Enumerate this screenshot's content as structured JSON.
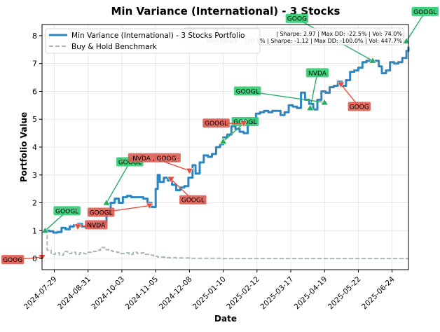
{
  "chart_data": {
    "type": "line",
    "title": "Min Variance (International) - 3 Stocks",
    "xlabel": "Date",
    "ylabel": "Portfolio Value",
    "x_tick_labels": [
      "2024-07-29",
      "2024-08-31",
      "2024-10-03",
      "2024-11-05",
      "2024-12-08",
      "2025-01-10",
      "2025-02-12",
      "2025-03-17",
      "2025-04-19",
      "2025-05-22",
      "2025-06-24"
    ],
    "x_tick_dates": [
      "2024-07-29",
      "2024-08-31",
      "2024-10-03",
      "2024-11-05",
      "2024-12-08",
      "2025-01-10",
      "2025-02-12",
      "2025-03-17",
      "2025-04-19",
      "2025-05-22",
      "2025-06-24"
    ],
    "xlim": [
      "2024-07-17",
      "2025-07-10"
    ],
    "ylim": [
      -0.4,
      8.4
    ],
    "y_ticks": [
      0,
      1,
      2,
      3,
      4,
      5,
      6,
      7,
      8
    ],
    "grid": true,
    "legend_placement": "upper-left",
    "series": [
      {
        "name": "Min Variance (International) - 3 Stocks Portfolio",
        "color": "#2e86c1",
        "points": [
          [
            "2024-07-20",
            1.0
          ],
          [
            "2024-07-24",
            0.98
          ],
          [
            "2024-07-28",
            0.93
          ],
          [
            "2024-08-01",
            0.95
          ],
          [
            "2024-08-05",
            1.1
          ],
          [
            "2024-08-09",
            1.05
          ],
          [
            "2024-08-13",
            1.15
          ],
          [
            "2024-08-17",
            1.2
          ],
          [
            "2024-08-21",
            1.25
          ],
          [
            "2024-08-25",
            1.15
          ],
          [
            "2024-08-29",
            1.2
          ],
          [
            "2024-09-02",
            1.15
          ],
          [
            "2024-09-06",
            1.1
          ],
          [
            "2024-09-10",
            1.2
          ],
          [
            "2024-09-14",
            1.3
          ],
          [
            "2024-09-18",
            1.6
          ],
          [
            "2024-09-22",
            2.0
          ],
          [
            "2024-09-26",
            2.15
          ],
          [
            "2024-09-30",
            2.0
          ],
          [
            "2024-10-04",
            2.2
          ],
          [
            "2024-10-08",
            2.25
          ],
          [
            "2024-10-12",
            2.2
          ],
          [
            "2024-10-16",
            2.2
          ],
          [
            "2024-10-20",
            2.2
          ],
          [
            "2024-10-24",
            2.15
          ],
          [
            "2024-10-28",
            2.0
          ],
          [
            "2024-11-01",
            1.85
          ],
          [
            "2024-11-05",
            2.5
          ],
          [
            "2024-11-07",
            3.0
          ],
          [
            "2024-11-09",
            2.75
          ],
          [
            "2024-11-13",
            2.9
          ],
          [
            "2024-11-17",
            2.8
          ],
          [
            "2024-11-21",
            2.65
          ],
          [
            "2024-11-25",
            2.45
          ],
          [
            "2024-11-29",
            2.55
          ],
          [
            "2024-12-03",
            2.6
          ],
          [
            "2024-12-07",
            2.9
          ],
          [
            "2024-12-11",
            3.35
          ],
          [
            "2024-12-14",
            3.05
          ],
          [
            "2024-12-18",
            3.45
          ],
          [
            "2024-12-22",
            3.7
          ],
          [
            "2024-12-26",
            3.65
          ],
          [
            "2024-12-30",
            3.75
          ],
          [
            "2025-01-03",
            4.0
          ],
          [
            "2025-01-07",
            4.1
          ],
          [
            "2025-01-10",
            4.35
          ],
          [
            "2025-01-14",
            4.45
          ],
          [
            "2025-01-18",
            4.75
          ],
          [
            "2025-01-22",
            4.65
          ],
          [
            "2025-01-26",
            4.55
          ],
          [
            "2025-01-30",
            4.5
          ],
          [
            "2025-02-03",
            4.85
          ],
          [
            "2025-02-07",
            4.9
          ],
          [
            "2025-02-11",
            5.2
          ],
          [
            "2025-02-15",
            5.25
          ],
          [
            "2025-02-19",
            5.3
          ],
          [
            "2025-02-23",
            5.25
          ],
          [
            "2025-02-27",
            5.3
          ],
          [
            "2025-03-03",
            5.3
          ],
          [
            "2025-03-07",
            5.15
          ],
          [
            "2025-03-11",
            5.25
          ],
          [
            "2025-03-15",
            5.5
          ],
          [
            "2025-03-19",
            5.45
          ],
          [
            "2025-03-23",
            5.4
          ],
          [
            "2025-03-27",
            5.95
          ],
          [
            "2025-03-31",
            5.7
          ],
          [
            "2025-04-04",
            5.55
          ],
          [
            "2025-04-08",
            5.35
          ],
          [
            "2025-04-12",
            5.7
          ],
          [
            "2025-04-16",
            6.0
          ],
          [
            "2025-04-20",
            5.95
          ],
          [
            "2025-04-24",
            6.15
          ],
          [
            "2025-04-28",
            6.2
          ],
          [
            "2025-05-02",
            6.35
          ],
          [
            "2025-05-06",
            6.2
          ],
          [
            "2025-05-10",
            6.4
          ],
          [
            "2025-05-14",
            6.7
          ],
          [
            "2025-05-18",
            6.75
          ],
          [
            "2025-05-22",
            6.85
          ],
          [
            "2025-05-26",
            7.05
          ],
          [
            "2025-05-30",
            7.1
          ],
          [
            "2025-06-03",
            7.05
          ],
          [
            "2025-06-07",
            7.1
          ],
          [
            "2025-06-11",
            6.9
          ],
          [
            "2025-06-14",
            6.65
          ],
          [
            "2025-06-18",
            6.75
          ],
          [
            "2025-06-22",
            7.05
          ],
          [
            "2025-06-26",
            7.0
          ],
          [
            "2025-06-30",
            7.05
          ],
          [
            "2025-07-04",
            7.2
          ],
          [
            "2025-07-08",
            7.45
          ],
          [
            "2025-07-10",
            7.6
          ]
        ]
      },
      {
        "name": "Buy & Hold Benchmark",
        "color": "#a9b7b5",
        "dashed": true,
        "points": [
          [
            "2024-07-20",
            1.0
          ],
          [
            "2024-07-22",
            0.3
          ],
          [
            "2024-07-26",
            0.15
          ],
          [
            "2024-07-30",
            0.2
          ],
          [
            "2024-08-03",
            0.12
          ],
          [
            "2024-08-07",
            0.25
          ],
          [
            "2024-08-11",
            0.18
          ],
          [
            "2024-08-15",
            0.22
          ],
          [
            "2024-08-19",
            0.15
          ],
          [
            "2024-08-23",
            0.2
          ],
          [
            "2024-08-27",
            0.17
          ],
          [
            "2024-08-31",
            0.22
          ],
          [
            "2024-09-04",
            0.25
          ],
          [
            "2024-09-08",
            0.3
          ],
          [
            "2024-09-12",
            0.4
          ],
          [
            "2024-09-16",
            0.32
          ],
          [
            "2024-09-20",
            0.28
          ],
          [
            "2024-09-24",
            0.25
          ],
          [
            "2024-09-28",
            0.22
          ],
          [
            "2024-10-02",
            0.18
          ],
          [
            "2024-10-06",
            0.2
          ],
          [
            "2024-10-10",
            0.15
          ],
          [
            "2024-10-14",
            0.22
          ],
          [
            "2024-10-18",
            0.18
          ],
          [
            "2024-10-22",
            0.2
          ],
          [
            "2024-10-26",
            0.15
          ],
          [
            "2024-10-30",
            0.12
          ],
          [
            "2024-11-03",
            0.08
          ],
          [
            "2024-11-07",
            0.05
          ],
          [
            "2024-11-15",
            0.03
          ],
          [
            "2024-11-25",
            0.02
          ],
          [
            "2024-12-08",
            0.01
          ],
          [
            "2025-01-10",
            0.0
          ],
          [
            "2025-03-17",
            0.0
          ],
          [
            "2025-07-10",
            0.0
          ]
        ]
      }
    ],
    "stats_lines": [
      "| Sharpe: 2.97 | Max DD: -22.5% | Vol: 74.0%",
      "Benchmark: -100.0% | Sharpe: -1.12 | Max DD: -100.0% | Vol: 447.7%"
    ],
    "annotations": [
      {
        "label": "GOOG",
        "kind": "sell",
        "date": "2024-07-17",
        "y": 0.05
      },
      {
        "label": "GOOGL",
        "kind": "buy",
        "date": "2024-07-20",
        "y": 1.0
      },
      {
        "label": "NVDA",
        "kind": "sell",
        "date": "2024-08-21",
        "y": 1.15
      },
      {
        "label": "GOOGL",
        "kind": "buy",
        "date": "2024-09-18",
        "y": 2.0
      },
      {
        "label": "GOOGL",
        "kind": "sell",
        "date": "2024-10-30",
        "y": 1.9
      },
      {
        "label": "NVDA , GOOG",
        "kind": "sell",
        "date": "2024-12-08",
        "y": 3.15
      },
      {
        "label": "GOOGL",
        "kind": "sell",
        "date": "2024-11-20",
        "y": 2.85
      },
      {
        "label": "GOOGL",
        "kind": "buy",
        "date": "2025-01-10",
        "y": 4.2
      },
      {
        "label": "GOOGL",
        "kind": "sell",
        "date": "2025-01-30",
        "y": 4.85
      },
      {
        "label": "GOOGL",
        "kind": "buy",
        "date": "2025-04-19",
        "y": 5.6
      },
      {
        "label": "NVDA",
        "kind": "buy",
        "date": "2025-04-05",
        "y": 5.4
      },
      {
        "label": "GOOG",
        "kind": "sell",
        "date": "2025-05-05",
        "y": 6.25
      },
      {
        "label": "GOOG",
        "kind": "buy",
        "date": "2025-06-05",
        "y": 7.1
      },
      {
        "label": "GOOGL",
        "kind": "buy",
        "date": "2025-07-08",
        "y": 7.8
      }
    ]
  }
}
